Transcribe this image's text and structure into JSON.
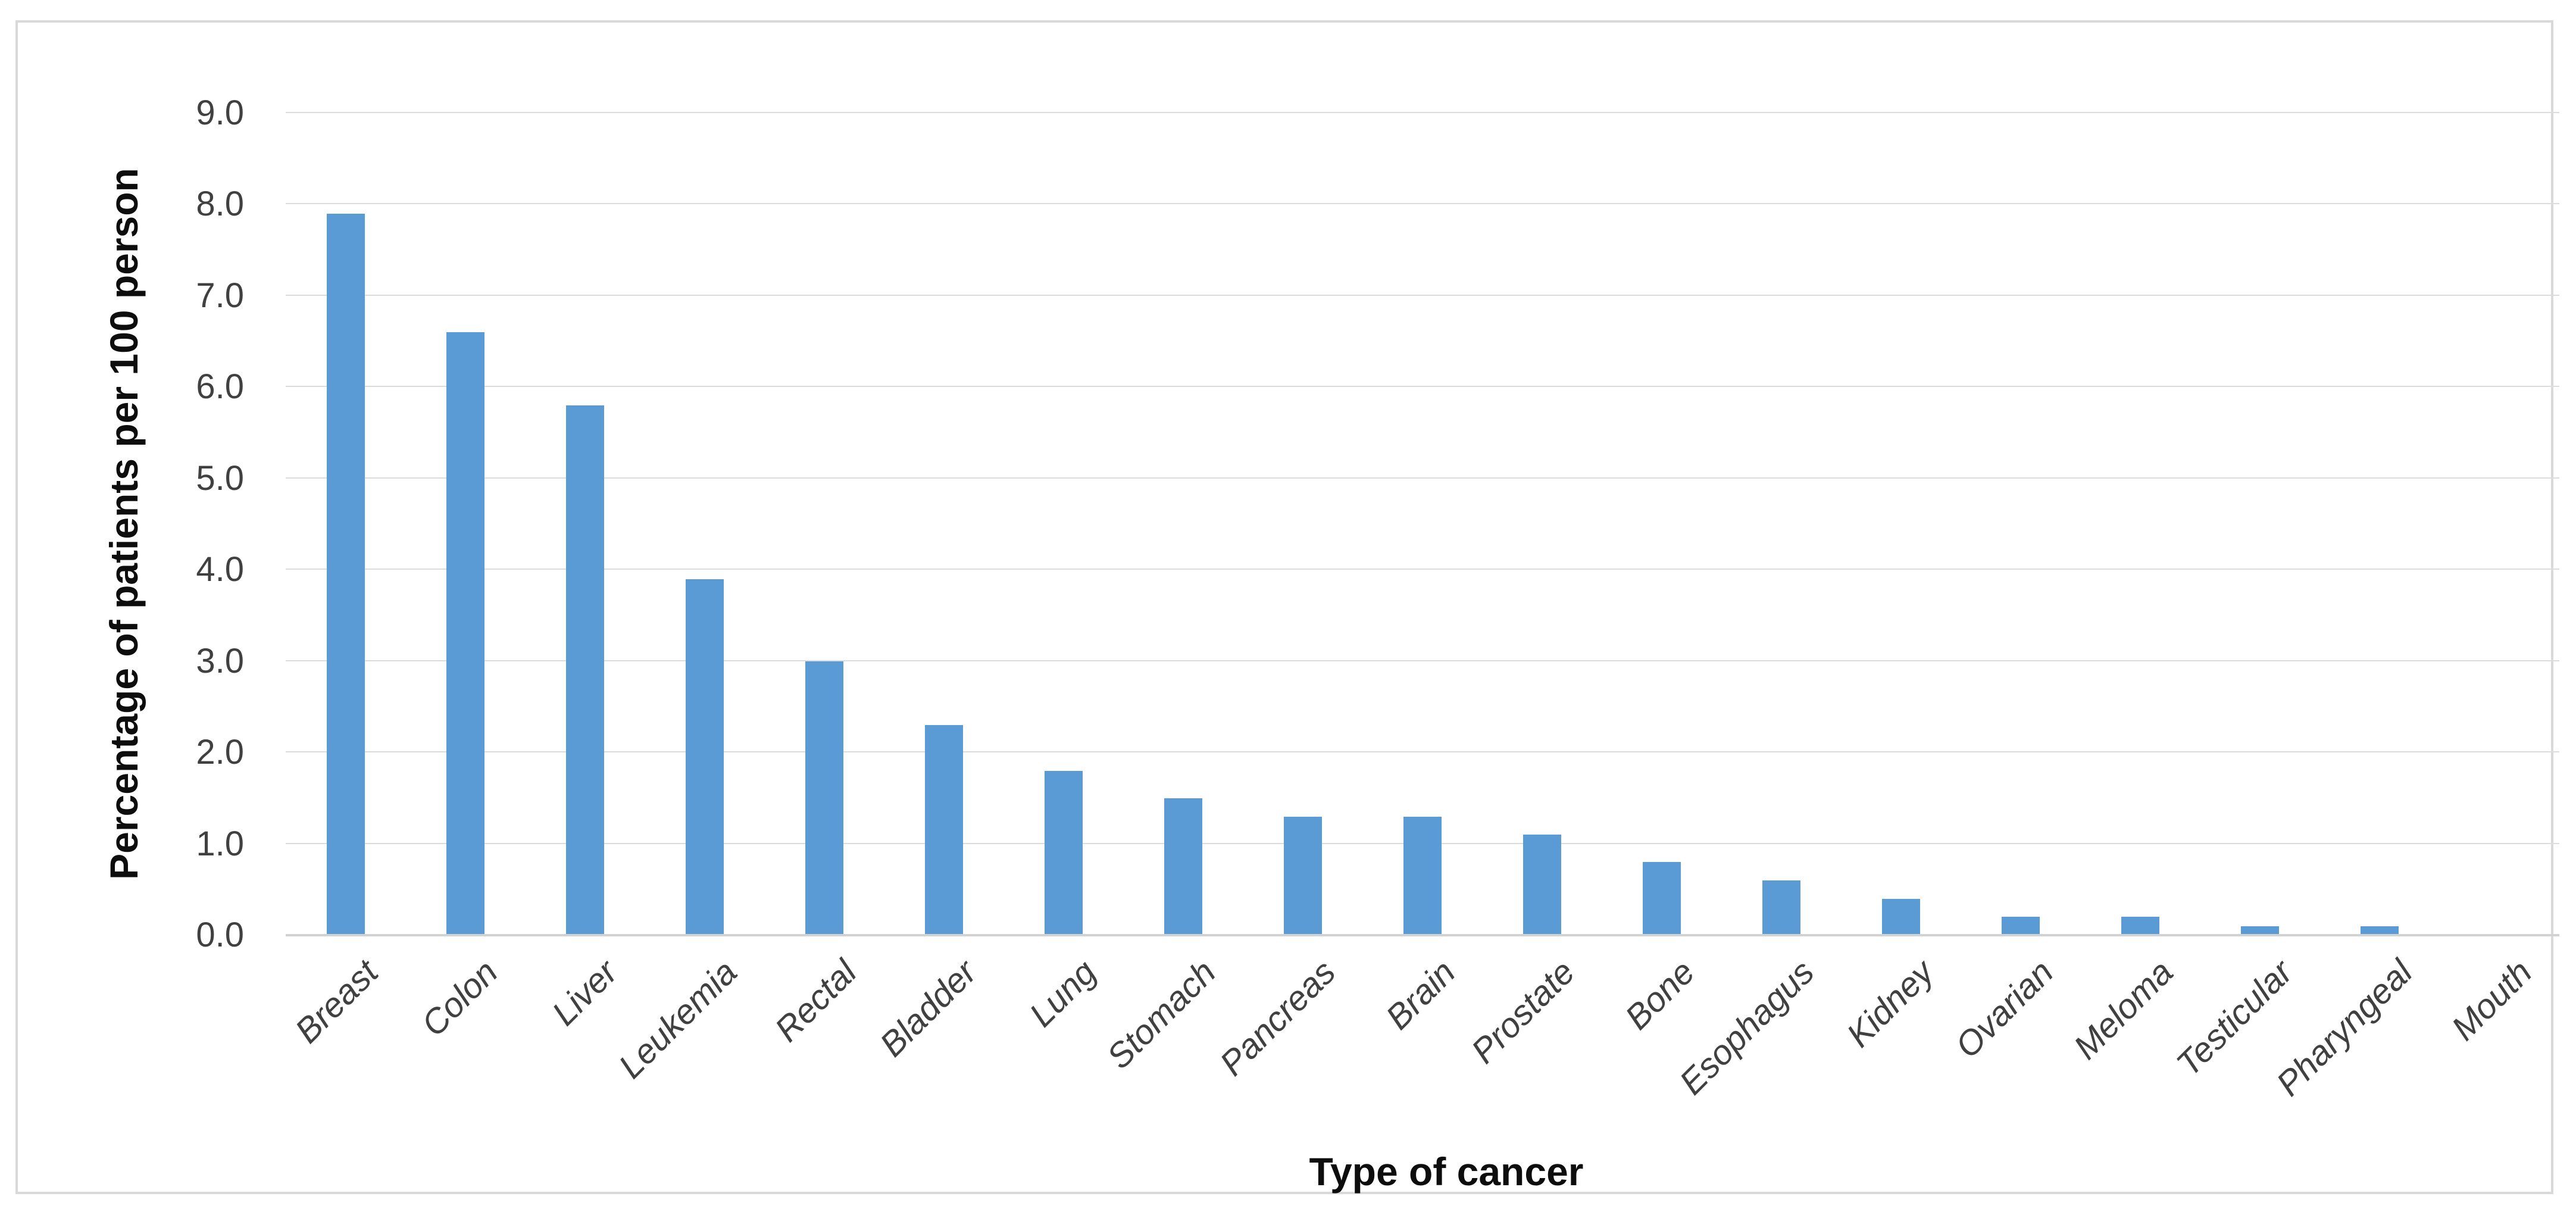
{
  "chart_data": {
    "type": "bar",
    "title": "",
    "xlabel": "Type of cancer",
    "ylabel": "Percentage of patients per 100 person",
    "categories": [
      "Breast",
      "Colon",
      "Liver",
      "Leukemia",
      "Rectal",
      "Bladder",
      "Lung",
      "Stomach",
      "Pancreas",
      "Brain",
      "Prostate",
      "Bone",
      "Esophagus",
      "Kidney",
      "Ovarian",
      "Meloma",
      "Testicular",
      "Pharyngeal",
      "Mouth"
    ],
    "values": [
      7.9,
      6.6,
      5.8,
      3.9,
      3.0,
      2.3,
      1.8,
      1.5,
      1.3,
      1.3,
      1.1,
      0.8,
      0.6,
      0.4,
      0.2,
      0.2,
      0.1,
      0.1,
      0.0
    ],
    "y_tick_labels": [
      "0.0",
      "1.0",
      "2.0",
      "3.0",
      "4.0",
      "5.0",
      "6.0",
      "7.0",
      "8.0",
      "9.0"
    ],
    "ylim": [
      0,
      9
    ],
    "grid": true,
    "legend": "none",
    "bar_color": "#5b9bd5",
    "gridline_color": "#dcdcdc",
    "axis_line_color": "#d2d2d2",
    "tick_text_color": "#404040",
    "title_text_color": "#0d0d0d",
    "frame_border_color": "#d9d9d9"
  }
}
